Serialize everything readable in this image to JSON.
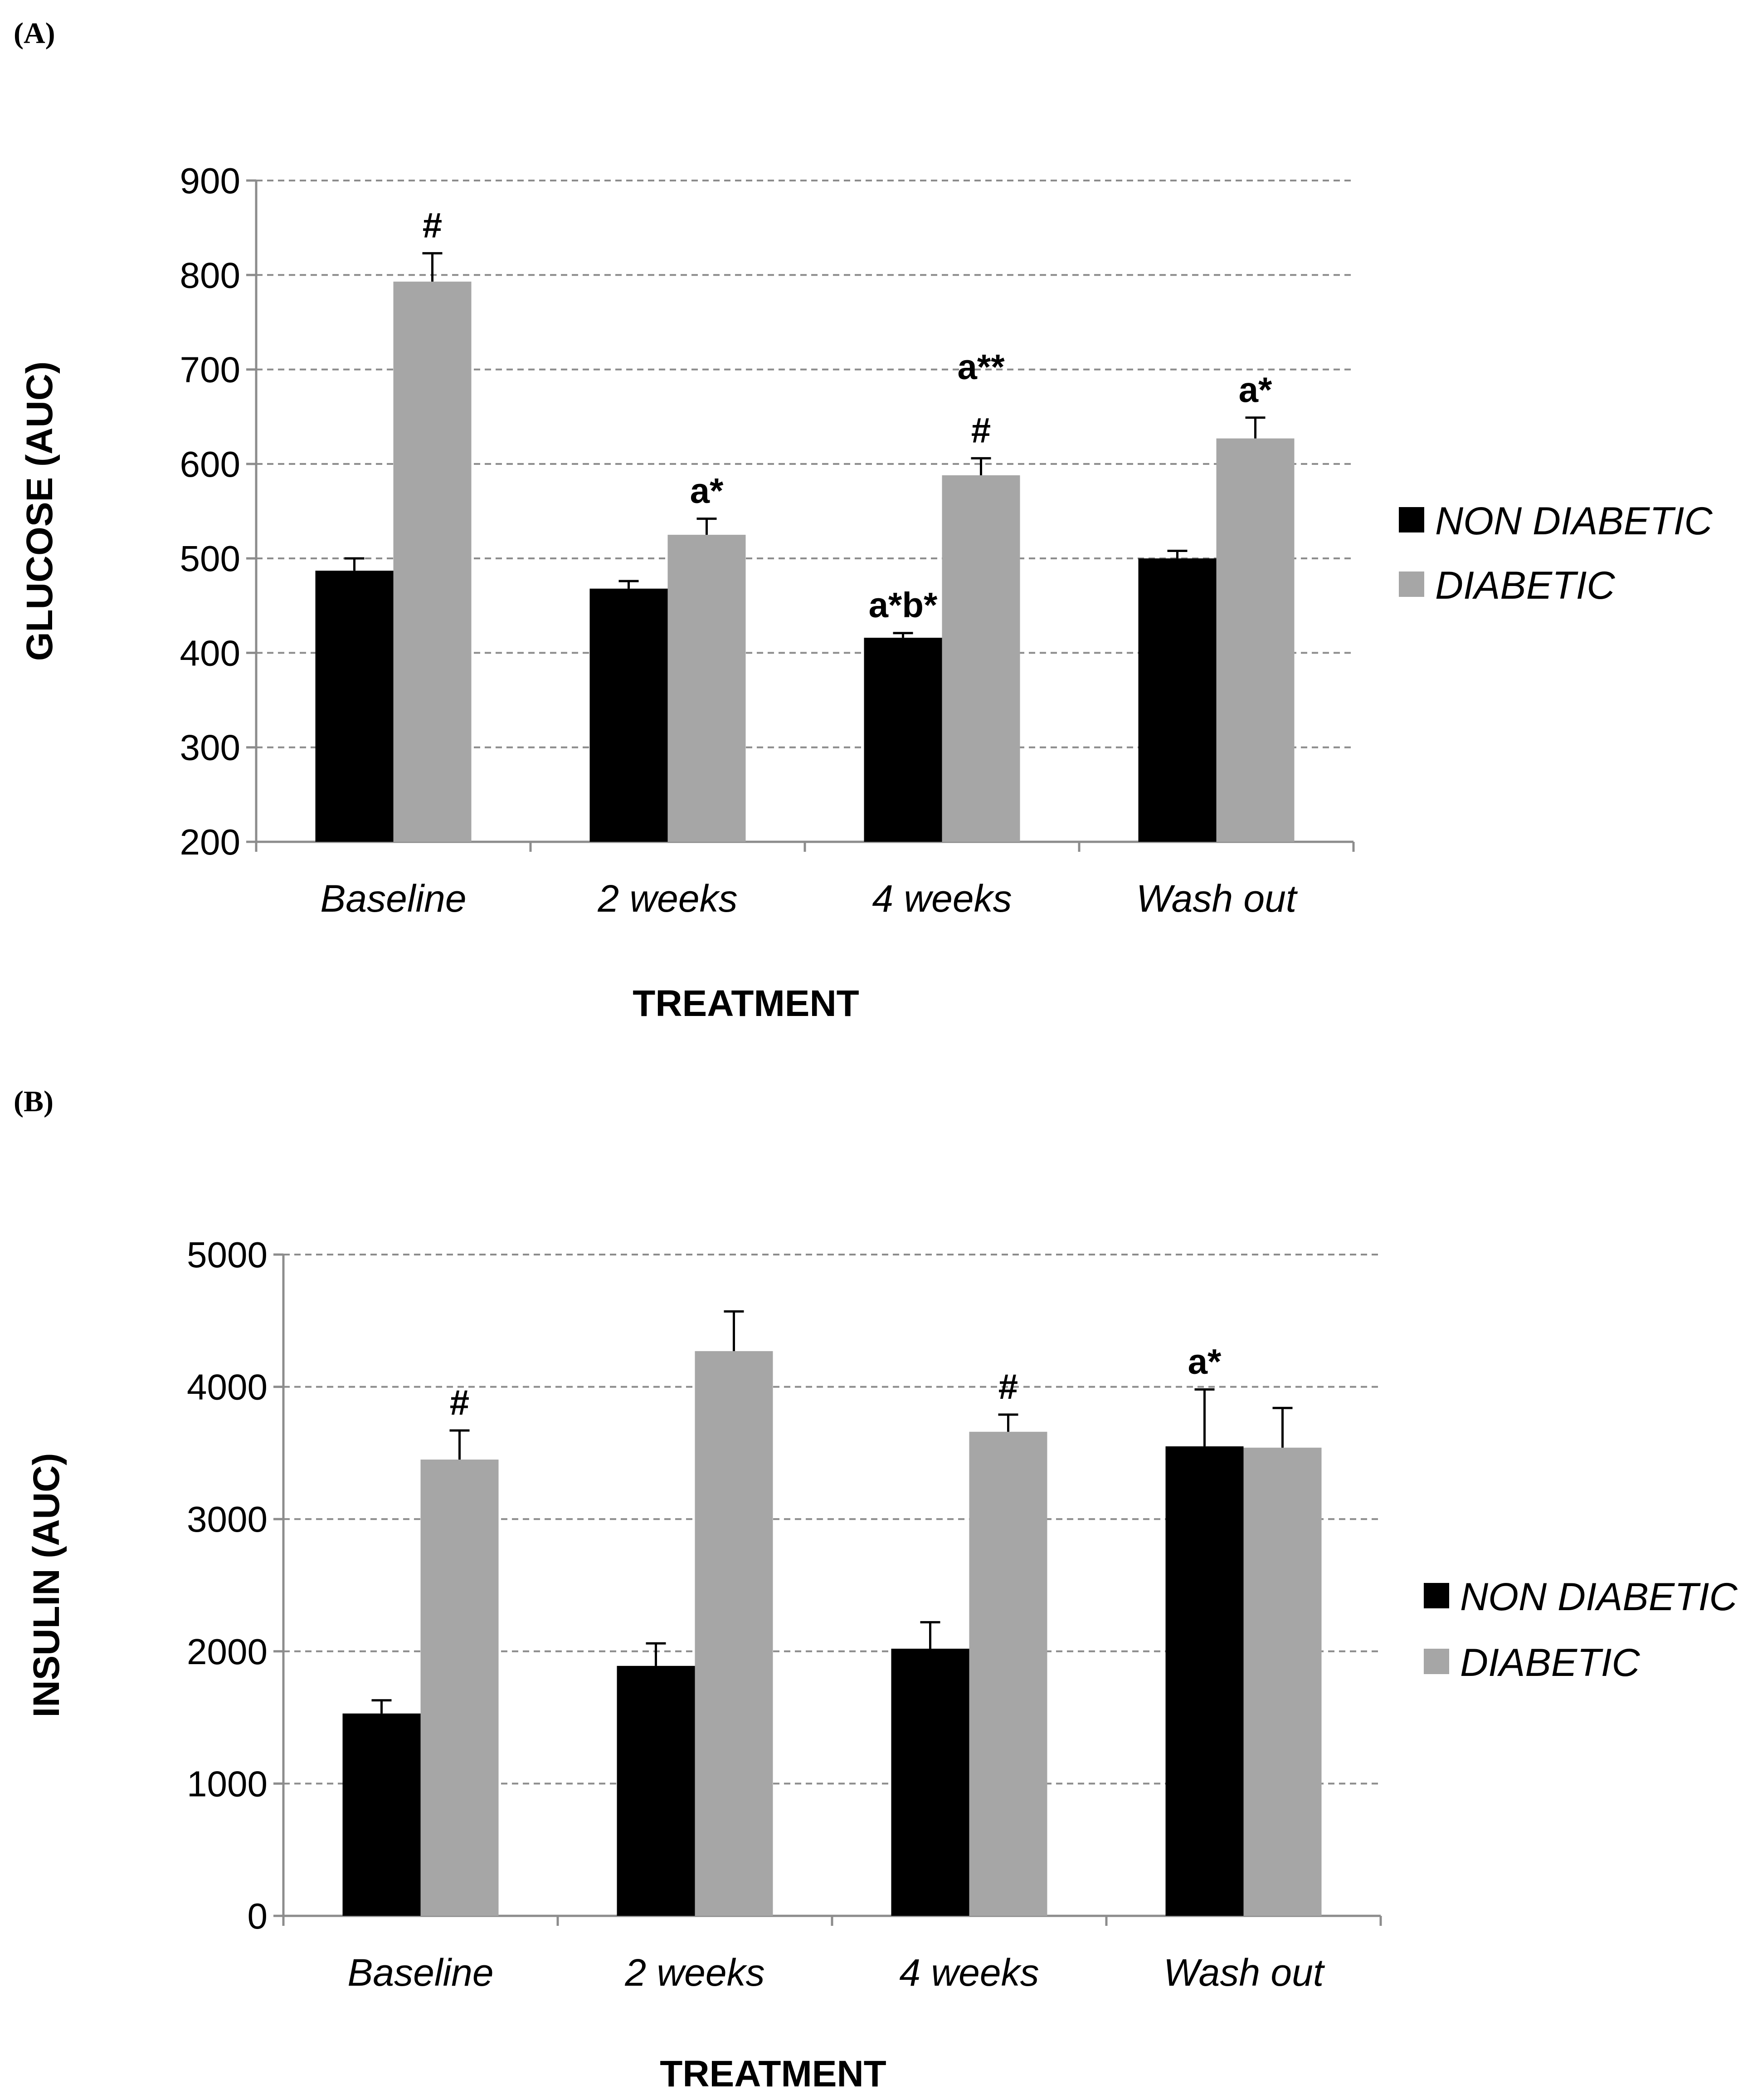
{
  "chart_data": [
    {
      "type": "bar",
      "panel_label": "(A)",
      "categories": [
        "Baseline",
        "2 weeks",
        "4 weeks",
        "Wash out"
      ],
      "series": [
        {
          "name": "NON DIABETIC",
          "color": "#000000",
          "values": [
            487,
            468,
            416,
            500
          ],
          "errors": [
            13,
            8,
            5,
            8
          ]
        },
        {
          "name": "DIABETIC",
          "color": "#a6a6a6",
          "values": [
            793,
            525,
            588,
            627
          ],
          "errors": [
            30,
            17,
            18,
            22
          ]
        }
      ],
      "annotations": [
        {
          "category": 0,
          "series": 1,
          "text": "#"
        },
        {
          "category": 1,
          "series": 1,
          "text": "a*"
        },
        {
          "category": 2,
          "series": 0,
          "text": "a*b*"
        },
        {
          "category": 2,
          "series": 1,
          "text": "#"
        },
        {
          "category": 2,
          "series": 1,
          "text": "a**"
        },
        {
          "category": 3,
          "series": 1,
          "text": "a*"
        }
      ],
      "xlabel": "TREATMENT",
      "ylabel": "GLUCOSE (AUC)",
      "ylim": [
        200,
        900
      ],
      "yticks": [
        200,
        300,
        400,
        500,
        600,
        700,
        800,
        900
      ],
      "grid": true,
      "legend_position": "right"
    },
    {
      "type": "bar",
      "panel_label": "(B)",
      "categories": [
        "Baseline",
        "2 weeks",
        "4 weeks",
        "Wash out"
      ],
      "series": [
        {
          "name": "NON DIABETIC",
          "color": "#000000",
          "values": [
            1530,
            1890,
            2020,
            3550
          ],
          "errors": [
            100,
            170,
            200,
            430
          ]
        },
        {
          "name": "DIABETIC",
          "color": "#a6a6a6",
          "values": [
            3450,
            4270,
            3660,
            3540
          ],
          "errors": [
            220,
            300,
            130,
            300
          ]
        }
      ],
      "annotations": [
        {
          "category": 0,
          "series": 1,
          "text": "#"
        },
        {
          "category": 2,
          "series": 1,
          "text": "#"
        },
        {
          "category": 3,
          "series": 0,
          "text": "a*"
        }
      ],
      "xlabel": "TREATMENT",
      "ylabel": "INSULIN (AUC)",
      "ylim": [
        0,
        5000
      ],
      "yticks": [
        0,
        1000,
        2000,
        3000,
        4000,
        5000
      ],
      "grid": true,
      "legend_position": "right"
    }
  ]
}
